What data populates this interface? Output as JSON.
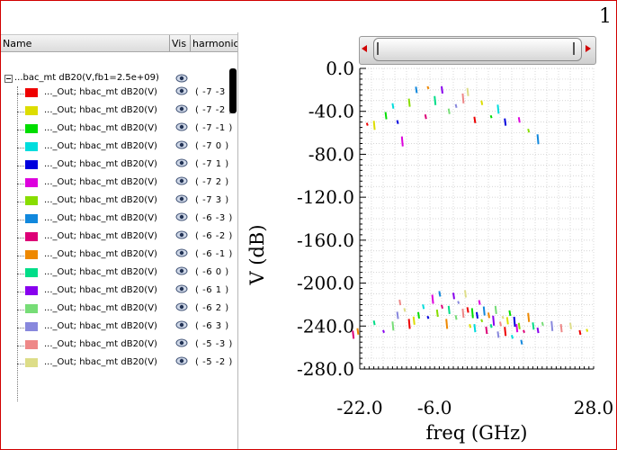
{
  "page_number": "1",
  "tree": {
    "headers": {
      "name": "Name",
      "vis": "Vis",
      "harmonic": "harmonic"
    },
    "root_label": "...bac_mt dB20(V,fb1=2.5e+09)",
    "rows": [
      {
        "label": "..._Out; hbac_mt dB20(V)",
        "harmonic": "( -7 -3 )",
        "color": "#ee0000"
      },
      {
        "label": "..._Out; hbac_mt dB20(V)",
        "harmonic": "( -7 -2 )",
        "color": "#dddd00"
      },
      {
        "label": "..._Out; hbac_mt dB20(V)",
        "harmonic": "( -7 -1 )",
        "color": "#00dd00"
      },
      {
        "label": "..._Out; hbac_mt dB20(V)",
        "harmonic": "( -7 0 )",
        "color": "#00dddd"
      },
      {
        "label": "..._Out; hbac_mt dB20(V)",
        "harmonic": "( -7 1 )",
        "color": "#0000dd"
      },
      {
        "label": "..._Out; hbac_mt dB20(V)",
        "harmonic": "( -7 2 )",
        "color": "#dd00dd"
      },
      {
        "label": "..._Out; hbac_mt dB20(V)",
        "harmonic": "( -7 3 )",
        "color": "#88dd00"
      },
      {
        "label": "..._Out; hbac_mt dB20(V)",
        "harmonic": "( -6 -3 )",
        "color": "#1188dd"
      },
      {
        "label": "..._Out; hbac_mt dB20(V)",
        "harmonic": "( -6 -2 )",
        "color": "#dd0077"
      },
      {
        "label": "..._Out; hbac_mt dB20(V)",
        "harmonic": "( -6 -1 )",
        "color": "#ee8800"
      },
      {
        "label": "..._Out; hbac_mt dB20(V)",
        "harmonic": "( -6 0 )",
        "color": "#00dd88"
      },
      {
        "label": "..._Out; hbac_mt dB20(V)",
        "harmonic": "( -6 1 )",
        "color": "#8800ee"
      },
      {
        "label": "..._Out; hbac_mt dB20(V)",
        "harmonic": "( -6 2 )",
        "color": "#77dd77"
      },
      {
        "label": "..._Out; hbac_mt dB20(V)",
        "harmonic": "( -6 3 )",
        "color": "#8888dd"
      },
      {
        "label": "..._Out; hbac_mt dB20(V)",
        "harmonic": "( -5 -3 )",
        "color": "#ee8888"
      },
      {
        "label": "..._Out; hbac_mt dB20(V)",
        "harmonic": "( -5 -2 )",
        "color": "#dddd88"
      }
    ]
  },
  "icons": {
    "eye": "eye-icon",
    "expand": "minus-box-icon"
  },
  "chart_data": {
    "type": "scatter",
    "xlabel": "freq (GHz)",
    "ylabel": "V (dB)",
    "xlim": [
      -22,
      28
    ],
    "ylim": [
      -280,
      0
    ],
    "x_tick_labels": [
      "-22.0",
      "-6.0",
      "28.0"
    ],
    "x_ticks": [
      -22,
      -6,
      28
    ],
    "y_tick_labels": [
      "0.0",
      "-40.0",
      "-80.0",
      "-120.0",
      "-160.0",
      "-200.0",
      "-240.0",
      "-280.0"
    ],
    "y_ticks": [
      0,
      -40,
      -80,
      -120,
      -160,
      -200,
      -240,
      -280
    ],
    "grid": true,
    "colors": [
      "#ee0000",
      "#dddd00",
      "#00dd00",
      "#00dddd",
      "#0000dd",
      "#dd00dd",
      "#88dd00",
      "#1188dd",
      "#dd0077",
      "#ee8800",
      "#00dd88",
      "#8800ee",
      "#77dd77",
      "#8888dd",
      "#ee8888",
      "#dddd88"
    ],
    "upper_points": [
      [
        -20.5,
        -52
      ],
      [
        -19,
        -53
      ],
      [
        -16.5,
        -44
      ],
      [
        -15,
        -35
      ],
      [
        -14,
        -50
      ],
      [
        -13,
        -68
      ],
      [
        -11.5,
        -32
      ],
      [
        -10,
        -20
      ],
      [
        -8,
        -45
      ],
      [
        -7.5,
        -18
      ],
      [
        -6,
        -30
      ],
      [
        -4.5,
        -20
      ],
      [
        -3,
        -40
      ],
      [
        -1.5,
        -35
      ],
      [
        0,
        -28
      ],
      [
        1,
        -22
      ],
      [
        2.5,
        -48
      ],
      [
        4,
        -32
      ],
      [
        6,
        -45
      ],
      [
        7.5,
        -38
      ],
      [
        9,
        -50
      ],
      [
        12,
        -48
      ],
      [
        14,
        -58
      ],
      [
        16,
        -66
      ]
    ],
    "lower_points": [
      [
        -23.5,
        -248
      ],
      [
        -22.5,
        -245
      ],
      [
        -19,
        -237
      ],
      [
        -17,
        -245
      ],
      [
        -15,
        -240
      ],
      [
        -14,
        -230
      ],
      [
        -13.5,
        -218
      ],
      [
        -12.5,
        -225
      ],
      [
        -11.5,
        -238
      ],
      [
        -10.5,
        -235
      ],
      [
        -9.5,
        -230
      ],
      [
        -8.5,
        -222
      ],
      [
        -7.5,
        -232
      ],
      [
        -6.5,
        -215
      ],
      [
        -5.5,
        -228
      ],
      [
        -5,
        -210
      ],
      [
        -4.5,
        -222
      ],
      [
        -3.5,
        -238
      ],
      [
        -3,
        -225
      ],
      [
        -2,
        -212
      ],
      [
        -1.5,
        -232
      ],
      [
        -1,
        -218
      ],
      [
        0,
        -228
      ],
      [
        0.5,
        -210
      ],
      [
        1,
        -225
      ],
      [
        1.5,
        -240
      ],
      [
        2,
        -228
      ],
      [
        2.5,
        -242
      ],
      [
        3,
        -230
      ],
      [
        3.5,
        -218
      ],
      [
        4,
        -235
      ],
      [
        4.5,
        -226
      ],
      [
        5,
        -244
      ],
      [
        5.5,
        -230
      ],
      [
        6,
        -240
      ],
      [
        6.5,
        -235
      ],
      [
        7,
        -225
      ],
      [
        7.5,
        -248
      ],
      [
        8,
        -238
      ],
      [
        8.5,
        -232
      ],
      [
        9,
        -245
      ],
      [
        9.5,
        -235
      ],
      [
        10,
        -228
      ],
      [
        10.5,
        -250
      ],
      [
        11,
        -236
      ],
      [
        11.5,
        -242
      ],
      [
        12,
        -240
      ],
      [
        12.5,
        -255
      ],
      [
        13,
        -245
      ],
      [
        14,
        -232
      ],
      [
        15,
        -240
      ],
      [
        16,
        -244
      ],
      [
        17,
        -238
      ],
      [
        19,
        -240
      ],
      [
        21,
        -242
      ],
      [
        23,
        -240
      ],
      [
        25,
        -246
      ],
      [
        26.5,
        -244
      ]
    ]
  }
}
